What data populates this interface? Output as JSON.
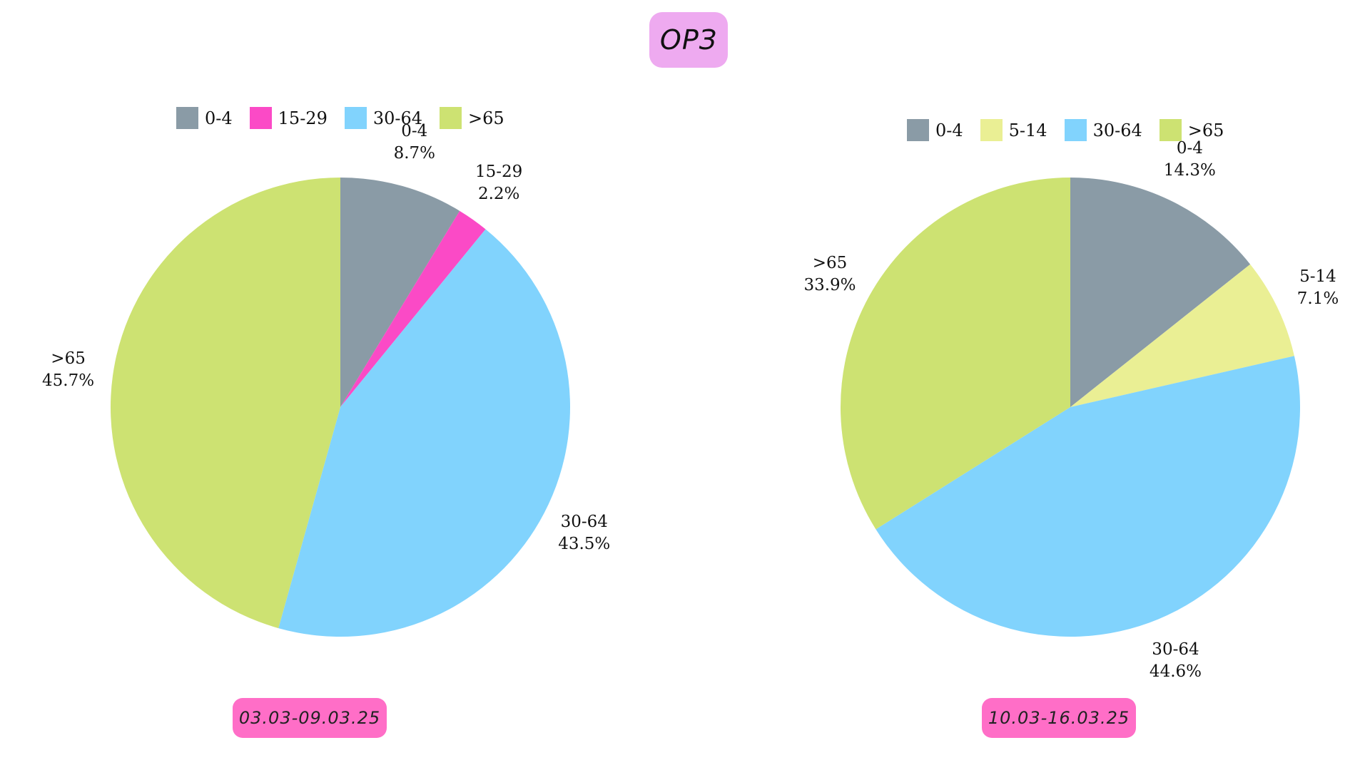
{
  "header": {
    "title": "ОРЗ"
  },
  "colors": {
    "title_badge": "#eeaaf0",
    "date_badge": "#ff6ec7"
  },
  "chart_data": [
    {
      "type": "pie",
      "period_label": "03.03-09.03.25",
      "legend": [
        "0-4",
        "15-29",
        "30-64",
        ">65"
      ],
      "legend_placement": "top",
      "slices": [
        {
          "label": "0-4",
          "value": 8.7,
          "value_label": "8.7%",
          "color": "#8a9ba6"
        },
        {
          "label": "15-29",
          "value": 2.2,
          "value_label": "2.2%",
          "color": "#fb4ac6"
        },
        {
          "label": "30-64",
          "value": 43.5,
          "value_label": "43.5%",
          "color": "#81d3fd"
        },
        {
          "label": ">65",
          "value": 45.7,
          "value_label": "45.7%",
          "color": "#cde272"
        }
      ]
    },
    {
      "type": "pie",
      "period_label": "10.03-16.03.25",
      "legend": [
        "0-4",
        "5-14",
        "30-64",
        ">65"
      ],
      "legend_placement": "top",
      "slices": [
        {
          "label": "0-4",
          "value": 14.3,
          "value_label": "14.3%",
          "color": "#8a9ba6"
        },
        {
          "label": "5-14",
          "value": 7.1,
          "value_label": "7.1%",
          "color": "#eaef94"
        },
        {
          "label": "30-64",
          "value": 44.6,
          "value_label": "44.6%",
          "color": "#81d3fd"
        },
        {
          "label": ">65",
          "value": 33.9,
          "value_label": "33.9%",
          "color": "#cde272"
        }
      ]
    }
  ]
}
